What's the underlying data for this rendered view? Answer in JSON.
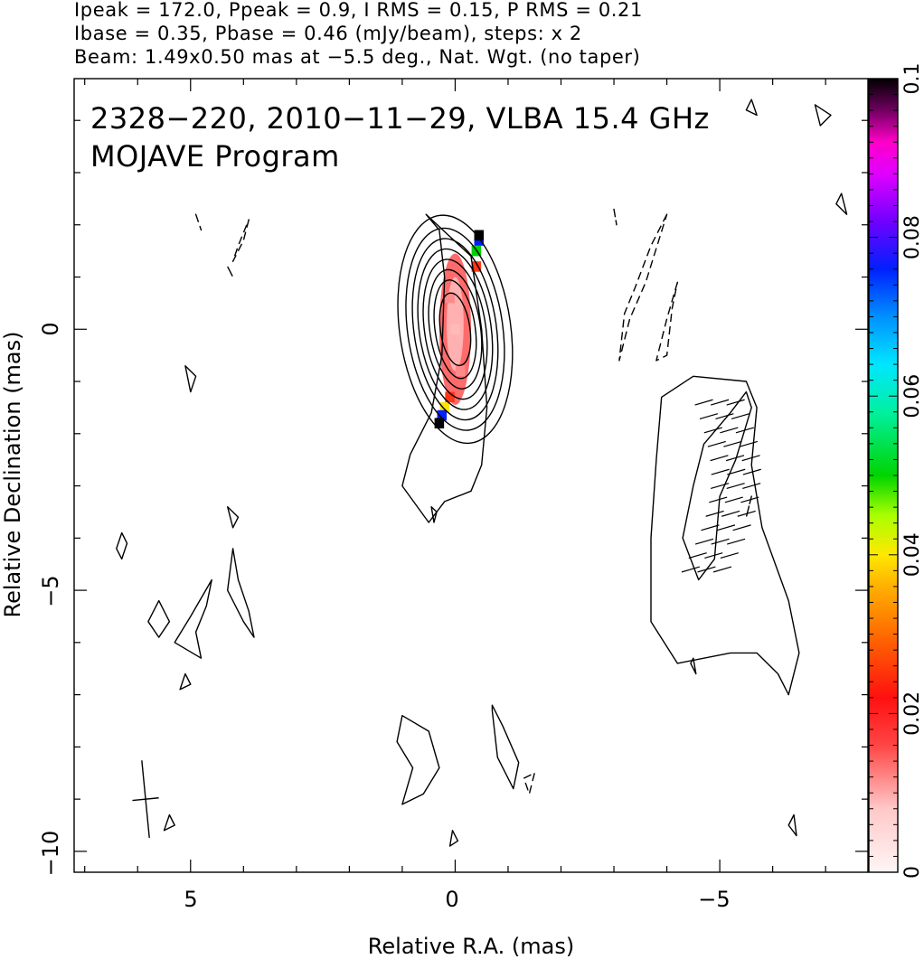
{
  "header": {
    "line1": "Ipeak = 172.0, Ppeak = 0.9, I RMS = 0.15, P RMS = 0.21",
    "line2": "Ibase = 0.35, Pbase = 0.46 (mJy/beam), steps: x 2",
    "line3": "Beam: 1.49x0.50 mas at −5.5 deg., Nat. Wgt. (no taper)"
  },
  "chart_data": {
    "type": "contour",
    "title": "2328−220, 2010−11−29, VLBA 15.4 GHz",
    "subtitle": "MOJAVE Program",
    "xlabel": "Relative R.A. (mas)",
    "ylabel": "Relative Declination (mas)",
    "xlim": [
      7.2,
      -7.8
    ],
    "ylim": [
      -10.4,
      4.8
    ],
    "x_ticks": [
      "5",
      "0",
      "−5"
    ],
    "y_ticks": [
      "0",
      "−5",
      "−10"
    ],
    "colorbar": {
      "min": 0,
      "max": 0.1,
      "ticks": [
        "0",
        "0.02",
        "0.04",
        "0.06",
        "0.08",
        "0.1"
      ]
    },
    "core_contours": {
      "center": [
        0.0,
        0.0
      ],
      "levels": [
        {
          "rx": 1.05,
          "ry": 2.2
        },
        {
          "rx": 0.9,
          "ry": 1.95
        },
        {
          "rx": 0.78,
          "ry": 1.75
        },
        {
          "rx": 0.68,
          "ry": 1.55
        },
        {
          "rx": 0.58,
          "ry": 1.35
        },
        {
          "rx": 0.48,
          "ry": 1.15
        },
        {
          "rx": 0.38,
          "ry": 0.95
        },
        {
          "rx": 0.28,
          "ry": 0.7
        }
      ]
    },
    "solid_contours": [
      [
        [
          0.55,
          2.2
        ],
        [
          0.3,
          1.9
        ],
        [
          0.2,
          1.0
        ],
        [
          0.25,
          -0.5
        ],
        [
          0.45,
          -1.6
        ],
        [
          0.85,
          -2.4
        ],
        [
          1.0,
          -3.0
        ],
        [
          0.5,
          -3.7
        ],
        [
          0.2,
          -3.3
        ],
        [
          -0.3,
          -3.1
        ],
        [
          -0.5,
          -2.6
        ],
        [
          -0.6,
          -1.5
        ],
        [
          -0.5,
          0.0
        ],
        [
          -0.3,
          1.4
        ]
      ],
      [
        [
          -4.5,
          -0.9
        ],
        [
          -3.9,
          -1.3
        ],
        [
          -3.8,
          -2.5
        ],
        [
          -3.7,
          -4.0
        ],
        [
          -3.7,
          -5.6
        ],
        [
          -4.2,
          -6.4
        ],
        [
          -5.2,
          -6.2
        ],
        [
          -5.7,
          -6.2
        ],
        [
          -6.1,
          -6.6
        ],
        [
          -6.3,
          -7.0
        ],
        [
          -6.5,
          -6.2
        ],
        [
          -6.3,
          -5.2
        ],
        [
          -5.8,
          -3.8
        ],
        [
          -5.6,
          -2.6
        ],
        [
          -5.7,
          -1.5
        ],
        [
          -5.5,
          -1.0
        ]
      ],
      [
        [
          -4.6,
          -4.8
        ],
        [
          -4.3,
          -4.0
        ],
        [
          -4.5,
          -3.0
        ],
        [
          -4.7,
          -2.2
        ],
        [
          -5.2,
          -1.6
        ],
        [
          -5.5,
          -1.2
        ],
        [
          -5.6,
          -1.5
        ],
        [
          -5.3,
          -2.5
        ],
        [
          -5.0,
          -3.2
        ],
        [
          -4.9,
          -4.4
        ]
      ],
      [
        [
          1.0,
          -7.4
        ],
        [
          0.5,
          -7.7
        ],
        [
          0.3,
          -8.4
        ],
        [
          0.6,
          -8.9
        ],
        [
          1.0,
          -9.1
        ],
        [
          0.8,
          -8.4
        ],
        [
          1.1,
          -7.9
        ]
      ],
      [
        [
          -0.7,
          -7.3
        ],
        [
          -0.8,
          -8.2
        ],
        [
          -1.1,
          -8.8
        ],
        [
          -1.2,
          -8.3
        ],
        [
          -0.9,
          -7.6
        ],
        [
          -0.7,
          -7.2
        ]
      ],
      [
        [
          4.6,
          -4.8
        ],
        [
          5.0,
          -5.5
        ],
        [
          5.3,
          -6.0
        ],
        [
          4.8,
          -6.3
        ],
        [
          4.9,
          -5.8
        ],
        [
          4.7,
          -5.3
        ]
      ],
      [
        [
          4.2,
          -4.2
        ],
        [
          4.1,
          -4.8
        ],
        [
          3.9,
          -5.4
        ],
        [
          3.8,
          -5.9
        ],
        [
          4.0,
          -5.6
        ],
        [
          4.3,
          -5.0
        ]
      ],
      [
        [
          5.6,
          -5.2
        ],
        [
          5.8,
          -5.6
        ],
        [
          5.6,
          -5.9
        ],
        [
          5.4,
          -5.6
        ]
      ],
      [
        [
          6.3,
          -3.9
        ],
        [
          6.4,
          -4.2
        ],
        [
          6.3,
          -4.4
        ],
        [
          6.2,
          -4.1
        ]
      ],
      [
        [
          5.1,
          -0.7
        ],
        [
          5.0,
          -1.2
        ],
        [
          4.9,
          -0.9
        ]
      ],
      [
        [
          4.3,
          -3.4
        ],
        [
          4.2,
          -3.8
        ],
        [
          4.1,
          -3.6
        ]
      ],
      [
        [
          5.1,
          -6.6
        ],
        [
          5.2,
          -6.9
        ],
        [
          5.0,
          -6.8
        ]
      ],
      [
        [
          5.4,
          -9.3
        ],
        [
          5.5,
          -9.6
        ],
        [
          5.3,
          -9.5
        ]
      ],
      [
        [
          0.45,
          -3.4
        ],
        [
          0.4,
          -3.7
        ],
        [
          0.35,
          -3.5
        ]
      ],
      [
        [
          0.05,
          -9.6
        ],
        [
          0.1,
          -9.9
        ],
        [
          -0.05,
          -9.8
        ]
      ],
      [
        [
          -4.5,
          -6.3
        ],
        [
          -4.55,
          -6.6
        ],
        [
          -4.45,
          -6.4
        ]
      ],
      [
        [
          -6.4,
          -9.3
        ],
        [
          -6.45,
          -9.7
        ],
        [
          -6.3,
          -9.5
        ]
      ],
      [
        [
          -6.8,
          4.3
        ],
        [
          -6.9,
          3.9
        ],
        [
          -7.1,
          4.1
        ]
      ],
      [
        [
          -5.6,
          4.4
        ],
        [
          -5.7,
          4.1
        ],
        [
          -5.5,
          4.2
        ]
      ],
      [
        [
          -7.3,
          2.6
        ],
        [
          -7.4,
          2.2
        ],
        [
          -7.2,
          2.4
        ]
      ]
    ],
    "dashed_contours": [
      [
        [
          3.9,
          2.1
        ],
        [
          4.0,
          1.7
        ],
        [
          4.2,
          1.3
        ],
        [
          4.1,
          1.6
        ]
      ],
      [
        [
          4.9,
          2.2
        ],
        [
          4.8,
          1.9
        ]
      ],
      [
        [
          4.3,
          1.2
        ],
        [
          4.2,
          1.0
        ]
      ],
      [
        [
          -4.0,
          2.2
        ],
        [
          -3.7,
          1.6
        ],
        [
          -3.4,
          0.8
        ],
        [
          -3.2,
          0.3
        ],
        [
          -3.1,
          -0.6
        ],
        [
          -3.3,
          0.2
        ],
        [
          -3.6,
          0.9
        ]
      ],
      [
        [
          -4.2,
          0.9
        ],
        [
          -4.0,
          0.2
        ],
        [
          -3.8,
          -0.6
        ],
        [
          -4.0,
          -0.5
        ],
        [
          -4.1,
          0.4
        ]
      ],
      [
        [
          -3.0,
          2.3
        ],
        [
          -3.05,
          2.0
        ]
      ],
      [
        [
          -5.6,
          -3.2
        ],
        [
          -5.5,
          -3.6
        ]
      ],
      [
        [
          -1.5,
          -8.5
        ],
        [
          -1.4,
          -8.9
        ],
        [
          -1.3,
          -8.6
        ]
      ]
    ],
    "polarization_pixels": [
      {
        "x": 0.0,
        "y": 0.0,
        "v": 0.003
      },
      {
        "x": 0.1,
        "y": 0.6,
        "v": 0.006
      },
      {
        "x": -0.1,
        "y": -0.8,
        "v": 0.006
      },
      {
        "x": -0.4,
        "y": 1.2,
        "v": 0.018
      },
      {
        "x": -0.4,
        "y": 1.5,
        "v": 0.05
      },
      {
        "x": -0.45,
        "y": 1.7,
        "v": 0.075
      },
      {
        "x": -0.45,
        "y": 1.8,
        "v": 0.1
      },
      {
        "x": 0.1,
        "y": -1.3,
        "v": 0.018
      },
      {
        "x": 0.2,
        "y": -1.5,
        "v": 0.04
      },
      {
        "x": 0.25,
        "y": -1.65,
        "v": 0.075
      },
      {
        "x": 0.3,
        "y": -1.8,
        "v": 0.1
      }
    ],
    "ev_ticks": {
      "x_range": [
        -4.4,
        -5.5
      ],
      "y_range": [
        -1.4,
        -4.6
      ],
      "count": 13,
      "length": 0.35
    },
    "beam": {
      "x": 5.85,
      "y": -9.0,
      "major_mas": 1.49,
      "minor_mas": 0.5,
      "pa_deg": -5.5
    }
  }
}
